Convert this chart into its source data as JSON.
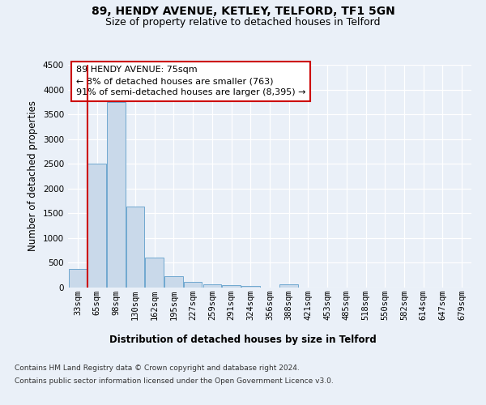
{
  "title_line1": "89, HENDY AVENUE, KETLEY, TELFORD, TF1 5GN",
  "title_line2": "Size of property relative to detached houses in Telford",
  "xlabel": "Distribution of detached houses by size in Telford",
  "ylabel": "Number of detached properties",
  "footer_line1": "Contains HM Land Registry data © Crown copyright and database right 2024.",
  "footer_line2": "Contains public sector information licensed under the Open Government Licence v3.0.",
  "categories": [
    "33sqm",
    "65sqm",
    "98sqm",
    "130sqm",
    "162sqm",
    "195sqm",
    "227sqm",
    "259sqm",
    "291sqm",
    "324sqm",
    "356sqm",
    "388sqm",
    "421sqm",
    "453sqm",
    "485sqm",
    "518sqm",
    "550sqm",
    "582sqm",
    "614sqm",
    "647sqm",
    "679sqm"
  ],
  "values": [
    370,
    2500,
    3750,
    1640,
    600,
    230,
    110,
    60,
    45,
    40,
    0,
    60,
    0,
    0,
    0,
    0,
    0,
    0,
    0,
    0,
    0
  ],
  "bar_color": "#c9d9ea",
  "bar_edge_color": "#6fa8d0",
  "red_line_x": 1.0,
  "annotation_text": "89 HENDY AVENUE: 75sqm\n← 8% of detached houses are smaller (763)\n91% of semi-detached houses are larger (8,395) →",
  "annotation_box_color": "#ffffff",
  "annotation_box_edge": "#cc0000",
  "ylim": [
    0,
    4500
  ],
  "yticks": [
    0,
    500,
    1000,
    1500,
    2000,
    2500,
    3000,
    3500,
    4000,
    4500
  ],
  "bg_color": "#eaf0f8",
  "plot_bg_color": "#eaf0f8",
  "grid_color": "#ffffff",
  "red_line_color": "#cc0000",
  "title_fontsize": 10,
  "subtitle_fontsize": 9,
  "axis_label_fontsize": 8.5,
  "tick_fontsize": 7.5,
  "annotation_fontsize": 8
}
